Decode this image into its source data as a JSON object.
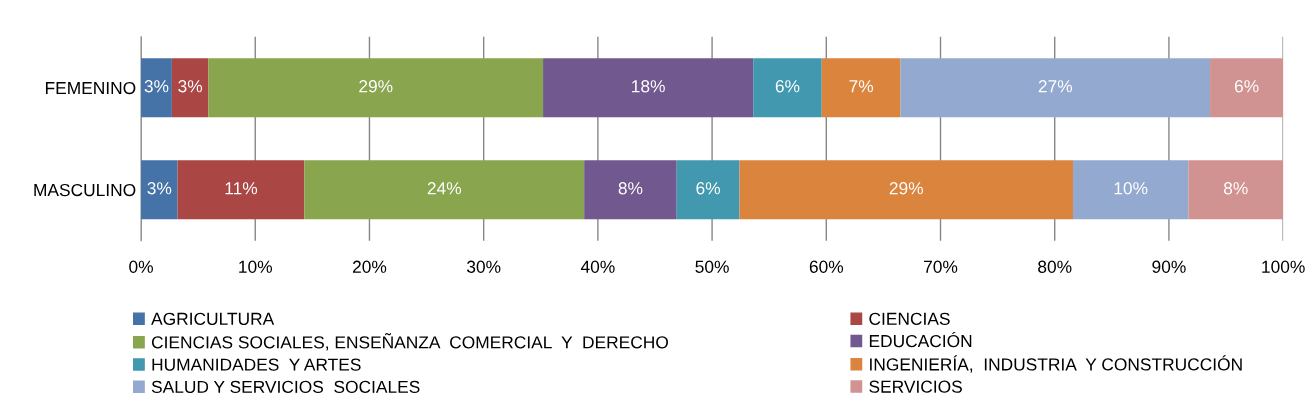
{
  "chart_data": {
    "type": "bar",
    "orientation": "horizontal",
    "stacked": true,
    "categories": [
      "FEMENINO",
      "MASCULINO"
    ],
    "series": [
      {
        "name": "AGRICULTURA",
        "color": "#4572a7",
        "values": [
          2.7,
          3.2
        ],
        "value_labels": [
          "3%",
          "3%"
        ]
      },
      {
        "name": "CIENCIAS",
        "color": "#aa4643",
        "values": [
          3.2,
          11.1
        ],
        "value_labels": [
          "3%",
          "11%"
        ]
      },
      {
        "name": "CIENCIAS SOCIALES, ENSEÑANZA  COMERCIAL  Y  DERECHO",
        "color": "#89a54e",
        "values": [
          29.3,
          24.5
        ],
        "value_labels": [
          "29%",
          "24%"
        ]
      },
      {
        "name": "EDUCACIÓN",
        "color": "#71588f",
        "values": [
          18.4,
          8.1
        ],
        "value_labels": [
          "18%",
          "8%"
        ]
      },
      {
        "name": "HUMANIDADES  Y ARTES",
        "color": "#4198af",
        "values": [
          6.0,
          5.5
        ],
        "value_labels": [
          "6%",
          "6%"
        ]
      },
      {
        "name": "INGENIERÍA,  INDUSTRIA  Y CONSTRUCCIÓN",
        "color": "#db843d",
        "values": [
          6.9,
          29.2
        ],
        "value_labels": [
          "7%",
          "29%"
        ]
      },
      {
        "name": "SALUD Y SERVICIOS  SOCIALES",
        "color": "#93a9cf",
        "values": [
          27.1,
          10.1
        ],
        "value_labels": [
          "27%",
          "10%"
        ]
      },
      {
        "name": "SERVICIOS",
        "color": "#d19392",
        "values": [
          6.4,
          8.3
        ],
        "value_labels": [
          "6%",
          "8%"
        ]
      }
    ],
    "xlim": [
      0,
      100
    ],
    "xticks": [
      {
        "value": 0,
        "label": "0%"
      },
      {
        "value": 10,
        "label": "10%"
      },
      {
        "value": 20,
        "label": "20%"
      },
      {
        "value": 30,
        "label": "30%"
      },
      {
        "value": 40,
        "label": "40%"
      },
      {
        "value": 50,
        "label": "50%"
      },
      {
        "value": 60,
        "label": "60%"
      },
      {
        "value": 70,
        "label": "70%"
      },
      {
        "value": 80,
        "label": "80%"
      },
      {
        "value": 90,
        "label": "90%"
      },
      {
        "value": 100,
        "label": "100%"
      }
    ],
    "grid": "x",
    "legend": "bottom"
  }
}
